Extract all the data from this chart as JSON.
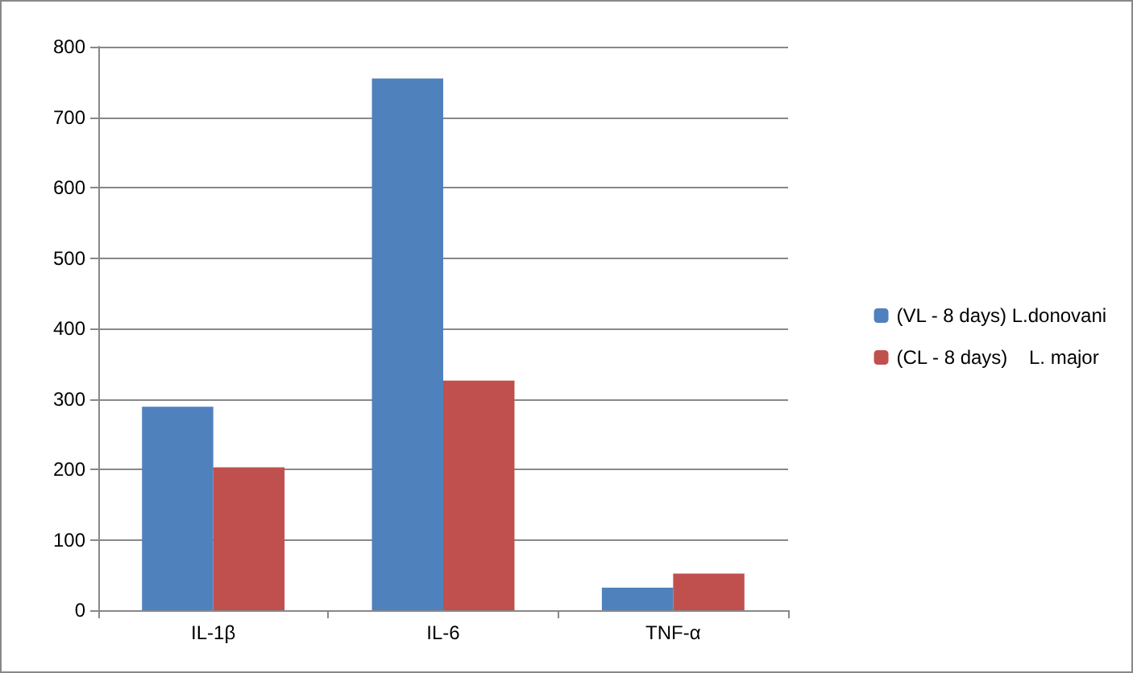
{
  "chart_data": {
    "type": "bar",
    "categories": [
      "IL-1β",
      "IL-6",
      "TNF-α"
    ],
    "series": [
      {
        "name": "(VL - 8 days) L.donovani",
        "color": "#4f81bd",
        "values": [
          289,
          755,
          32
        ]
      },
      {
        "name": "(CL - 8 days)    L. major",
        "color": "#c0504d",
        "values": [
          203,
          326,
          52
        ]
      }
    ],
    "ylim": [
      0,
      800
    ],
    "yticks": [
      0,
      100,
      200,
      300,
      400,
      500,
      600,
      700,
      800
    ],
    "grid": "y",
    "legend": "right"
  }
}
